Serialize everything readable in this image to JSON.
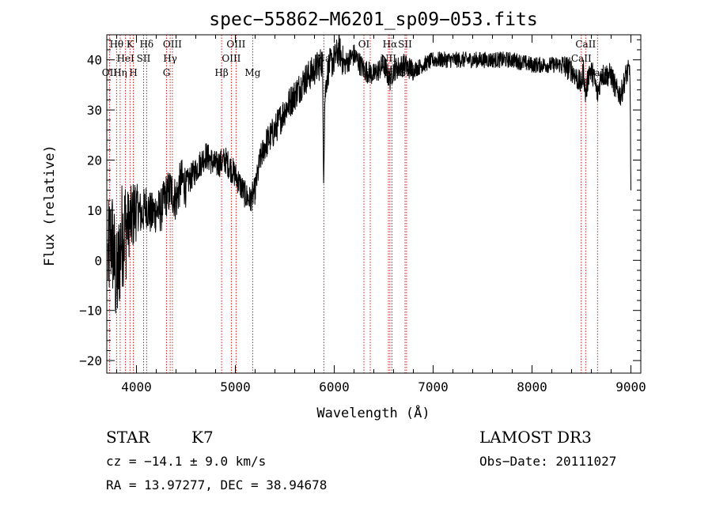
{
  "chart_data": {
    "type": "line",
    "title": "spec−55862−M6201_sp09−053.fits",
    "xlabel": "Wavelength (Å)",
    "ylabel": "Flux (relative)",
    "xlim": [
      3700,
      9100
    ],
    "ylim": [
      -22.5,
      45
    ],
    "xticks": [
      4000,
      5000,
      6000,
      7000,
      8000,
      9000
    ],
    "xtick_labels": [
      "4000",
      "5000",
      "6000",
      "7000",
      "8000",
      "9000"
    ],
    "yticks": [
      -20,
      -10,
      0,
      10,
      20,
      30,
      40
    ],
    "ytick_labels": [
      "−20",
      "−10",
      "0",
      "10",
      "20",
      "30",
      "40"
    ],
    "grid": false,
    "spectrum_anchors": {
      "x": [
        3710,
        3750,
        3800,
        3850,
        3900,
        3950,
        4000,
        4050,
        4100,
        4150,
        4200,
        4250,
        4300,
        4350,
        4400,
        4450,
        4500,
        4600,
        4700,
        4800,
        4900,
        5000,
        5050,
        5100,
        5150,
        5200,
        5250,
        5300,
        5400,
        5500,
        5600,
        5700,
        5800,
        5850,
        5880,
        5893,
        5905,
        5920,
        5950,
        6000,
        6050,
        6100,
        6150,
        6200,
        6300,
        6400,
        6500,
        6562,
        6600,
        6700,
        6800,
        6900,
        7000,
        7200,
        7400,
        7600,
        7800,
        8000,
        8100,
        8200,
        8300,
        8400,
        8498,
        8520,
        8542,
        8580,
        8620,
        8662,
        8700,
        8750,
        8800,
        8850,
        8900,
        8950,
        8990,
        9000
      ],
      "y": [
        0,
        5,
        -5,
        5,
        7,
        8,
        11,
        9,
        11,
        9,
        10,
        10,
        13,
        14,
        12,
        16,
        15,
        18,
        21,
        19,
        20,
        17,
        15,
        13,
        12,
        14,
        20,
        23,
        26,
        30,
        33,
        36,
        38,
        39,
        40,
        17,
        32,
        36,
        39,
        40,
        42,
        39,
        40,
        41,
        38,
        37,
        39,
        36,
        38,
        39,
        38,
        39,
        40,
        40,
        40,
        40,
        40,
        39,
        39,
        39,
        39,
        38,
        35,
        38,
        33,
        38,
        37,
        33,
        37,
        37,
        37,
        34,
        33,
        37,
        38,
        14
      ]
    },
    "line_markers": [
      {
        "name": "OII",
        "wavelength": 3727,
        "row": 2
      },
      {
        "name": "Hθ",
        "wavelength": 3798,
        "row": 0
      },
      {
        "name": "Hη",
        "wavelength": 3835,
        "row": 2
      },
      {
        "name": "HeI",
        "wavelength": 3889,
        "row": 1
      },
      {
        "name": "K",
        "wavelength": 3934,
        "row": 0
      },
      {
        "name": "H",
        "wavelength": 3969,
        "row": 2
      },
      {
        "name": "SII",
        "wavelength": 4072,
        "row": 1
      },
      {
        "name": "Hδ",
        "wavelength": 4102,
        "row": 0
      },
      {
        "name": "G",
        "wavelength": 4304,
        "row": 2
      },
      {
        "name": "Hγ",
        "wavelength": 4341,
        "row": 1
      },
      {
        "name": "OIII",
        "wavelength": 4363,
        "row": 0
      },
      {
        "name": "Hβ",
        "wavelength": 4861,
        "row": 2
      },
      {
        "name": "OIII",
        "wavelength": 4959,
        "row": 1
      },
      {
        "name": "OIII",
        "wavelength": 5007,
        "row": 0
      },
      {
        "name": "Mg",
        "wavelength": 5175,
        "row": 2
      },
      {
        "name": "Na",
        "wavelength": 5894,
        "row": 1
      },
      {
        "name": "OI",
        "wavelength": 6300,
        "row": 0
      },
      {
        "name": "OI",
        "wavelength": 6364,
        "row": 2
      },
      {
        "name": "NII",
        "wavelength": 6548,
        "row": 1
      },
      {
        "name": "Hα",
        "wavelength": 6563,
        "row": 0
      },
      {
        "name": "NII",
        "wavelength": 6583,
        "row": 2
      },
      {
        "name": "SII",
        "wavelength": 6716,
        "row": 0
      },
      {
        "name": "SII",
        "wavelength": 6731,
        "row": 2
      },
      {
        "name": "CaII",
        "wavelength": 8498,
        "row": 1
      },
      {
        "name": "CaII",
        "wavelength": 8542,
        "row": 0
      },
      {
        "name": "CaII",
        "wavelength": 8662,
        "row": 2
      }
    ]
  },
  "info": {
    "object_class": "STAR",
    "subclass": "K7",
    "survey": "LAMOST DR3",
    "velocity": "cz = −14.1 ± 9.0 km/s",
    "obs_date": "Obs−Date: 20111027",
    "coordinates": "RA =  13.97277, DEC =  38.94678"
  },
  "colors": {
    "spectrum": "#000000",
    "marker_line": "#cc0000",
    "axis": "#000000"
  }
}
